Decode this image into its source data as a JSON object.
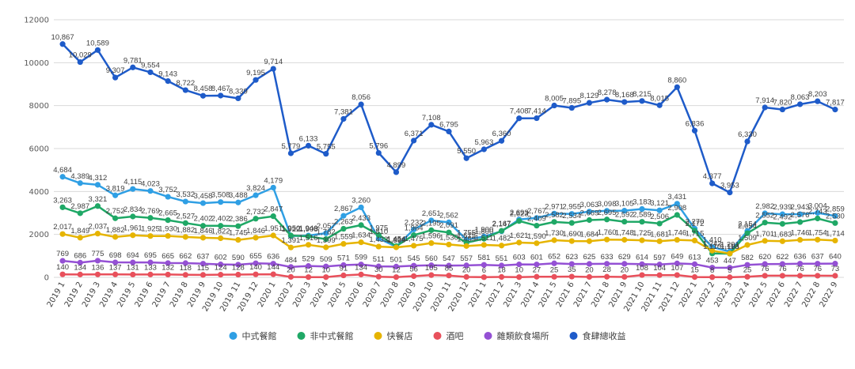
{
  "chart_data": {
    "type": "line",
    "title": "",
    "xlabel": "",
    "ylabel": "",
    "ylim": [
      0,
      12000
    ],
    "yticks": [
      "0",
      "2000",
      "4000",
      "6000",
      "8000",
      "10000",
      "12000"
    ],
    "grid": true,
    "legend_position": "bottom",
    "categories": [
      "2019 1",
      "2019 2",
      "2019 3",
      "2019 4",
      "2019 5",
      "2019 6",
      "2019 7",
      "2019 8",
      "2019 9",
      "2019 10",
      "2019 11",
      "2019 12",
      "2020 1",
      "2020 2",
      "2020 3",
      "2020 4",
      "2020 5",
      "2020 6",
      "2020 7",
      "2020 8",
      "2020 9",
      "2020 10",
      "2020 11",
      "2020 12",
      "2021 1",
      "2021 2",
      "2021 3",
      "2021 4",
      "2021 5",
      "2021 6",
      "2021 7",
      "2021 8",
      "2021 9",
      "2021 10",
      "2021 11",
      "2021 12",
      "2022 1",
      "2022 2",
      "2022 3",
      "2022 4",
      "2022 5",
      "2022 6",
      "2022 7",
      "2022 8",
      "2022 9"
    ],
    "series": [
      {
        "name": "中式餐館",
        "color": "#2f9fe4",
        "values": [
          4684,
          4389,
          4312,
          3819,
          4115,
          4023,
          3752,
          3532,
          3458,
          3508,
          3488,
          3824,
          4179,
          1922,
          1946,
          2057,
          2867,
          3260,
          1810,
          1424,
          2232,
          2651,
          2562,
          1755,
          1900,
          2147,
          2693,
          2767,
          2971,
          2955,
          3063,
          3098,
          3105,
          3183,
          3121,
          3431,
          2270,
          1410,
          1201,
          2154,
          2982,
          2939,
          2943,
          3004,
          2859
        ]
      },
      {
        "name": "非中式餐館",
        "color": "#1fa866",
        "values": [
          3263,
          2987,
          3321,
          2752,
          2834,
          2769,
          2665,
          2527,
          2402,
          2402,
          2386,
          2732,
          2847,
          1950,
          1906,
          1782,
          2263,
          2433,
          1975,
          1454,
          1964,
          2195,
          2091,
          1615,
          1800,
          2167,
          2623,
          2409,
          2582,
          2534,
          2669,
          2695,
          2592,
          2589,
          2506,
          2908,
          2172,
          1110,
          1103,
          2054,
          2552,
          2492,
          2576,
          2743,
          2530
        ]
      },
      {
        "name": "快餐店",
        "color": "#e6b400",
        "values": [
          2017,
          1849,
          2037,
          1882,
          1961,
          1925,
          1930,
          1882,
          1846,
          1822,
          1745,
          1846,
          1951,
          1391,
          1516,
          1399,
          1559,
          1634,
          1433,
          1399,
          1475,
          1596,
          1530,
          1459,
          1511,
          1482,
          1621,
          1590,
          1730,
          1690,
          1684,
          1760,
          1748,
          1725,
          1681,
          1746,
          1715,
          1242,
          1110,
          1509,
          1701,
          1683,
          1746,
          1754,
          1714
        ]
      },
      {
        "name": "酒吧",
        "color": "#e8505b",
        "values": [
          140,
          134,
          136,
          137,
          131,
          133,
          132,
          118,
          115,
          124,
          128,
          140,
          144,
          20,
          12,
          10,
          91,
          134,
          30,
          12,
          56,
          105,
          85,
          20,
          6,
          18,
          10,
          27,
          25,
          35,
          20,
          28,
          20,
          108,
          104,
          107,
          15,
          8,
          5,
          25,
          76,
          76,
          76,
          76,
          73
        ]
      },
      {
        "name": "雜類飲食場所",
        "color": "#9450d4",
        "values": [
          769,
          686,
          775,
          698,
          694,
          695,
          665,
          662,
          637,
          602,
          590,
          655,
          636,
          484,
          529,
          509,
          571,
          599,
          511,
          501,
          545,
          560,
          547,
          557,
          581,
          551,
          603,
          601,
          652,
          623,
          625,
          633,
          629,
          614,
          597,
          649,
          613,
          453,
          447,
          582,
          620,
          622,
          636,
          637,
          640
        ]
      },
      {
        "name": "食肆總收益",
        "color": "#1e5bc9",
        "values": [
          10867,
          10029,
          10589,
          9307,
          9781,
          9554,
          9143,
          8722,
          8458,
          8467,
          8339,
          9195,
          9714,
          5779,
          6133,
          5755,
          7381,
          8056,
          5796,
          4899,
          6371,
          7108,
          6795,
          5550,
          5963,
          6360,
          7408,
          7414,
          8005,
          7895,
          8129,
          8278,
          8168,
          8215,
          8015,
          8860,
          6836,
          4377,
          3953,
          6330,
          7914,
          7820,
          8063,
          8203,
          7817
        ]
      }
    ]
  }
}
